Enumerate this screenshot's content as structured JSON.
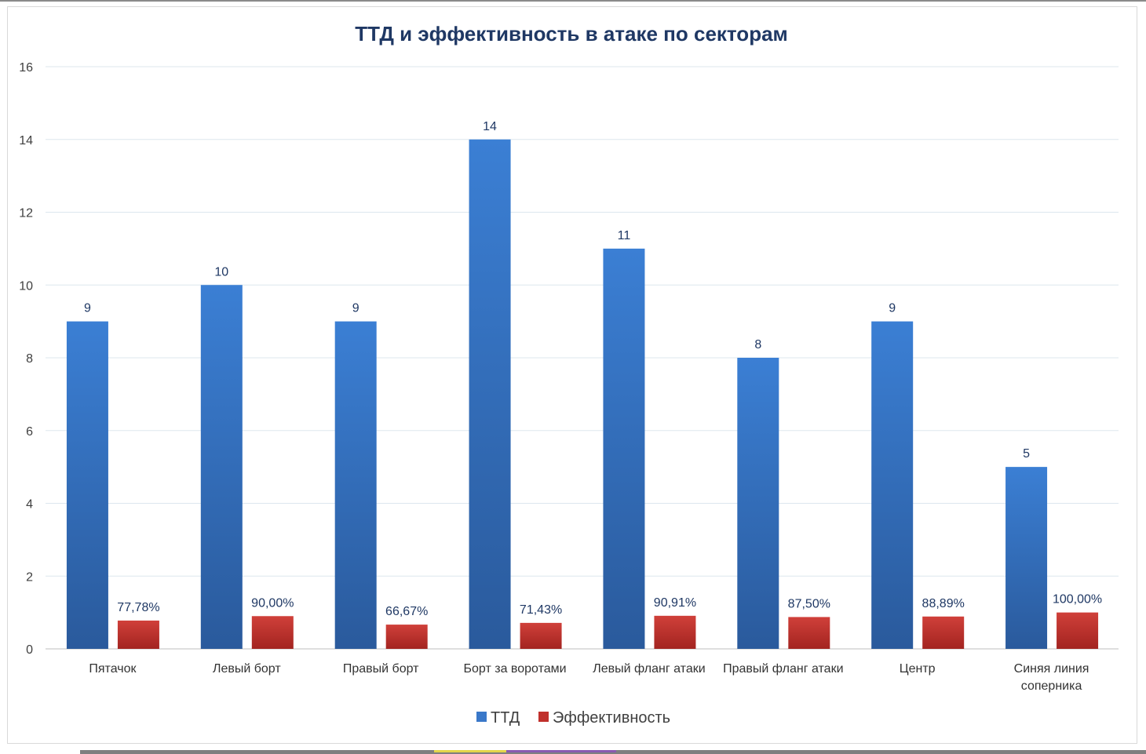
{
  "chart_data": {
    "type": "bar",
    "title": "ТТД и эффективность в атаке по секторам",
    "categories": [
      [
        "Пятачок"
      ],
      [
        "Левый борт"
      ],
      [
        "Правый борт"
      ],
      [
        "Борт за воротами"
      ],
      [
        "Левый фланг атаки"
      ],
      [
        "Правый фланг атаки"
      ],
      [
        "Центр"
      ],
      [
        "Синяя линия",
        "соперника"
      ]
    ],
    "series": [
      {
        "name": "ТТД",
        "color": "#3a78c9",
        "values": [
          9,
          10,
          9,
          14,
          11,
          8,
          9,
          5
        ],
        "labels": [
          "9",
          "10",
          "9",
          "14",
          "11",
          "8",
          "9",
          "5"
        ]
      },
      {
        "name": "Эффективность",
        "color": "#c0302c",
        "values": [
          0.7778,
          0.9,
          0.6667,
          0.7143,
          0.9091,
          0.875,
          0.8889,
          1.0
        ],
        "labels": [
          "77,78%",
          "90,00%",
          "66,67%",
          "71,43%",
          "90,91%",
          "87,50%",
          "88,89%",
          "100,00%"
        ]
      }
    ],
    "y_ticks": [
      "0",
      "2",
      "4",
      "6",
      "8",
      "10",
      "12",
      "14",
      "16"
    ],
    "ylim": [
      0,
      16
    ],
    "grid": true,
    "legend": "bottom"
  }
}
